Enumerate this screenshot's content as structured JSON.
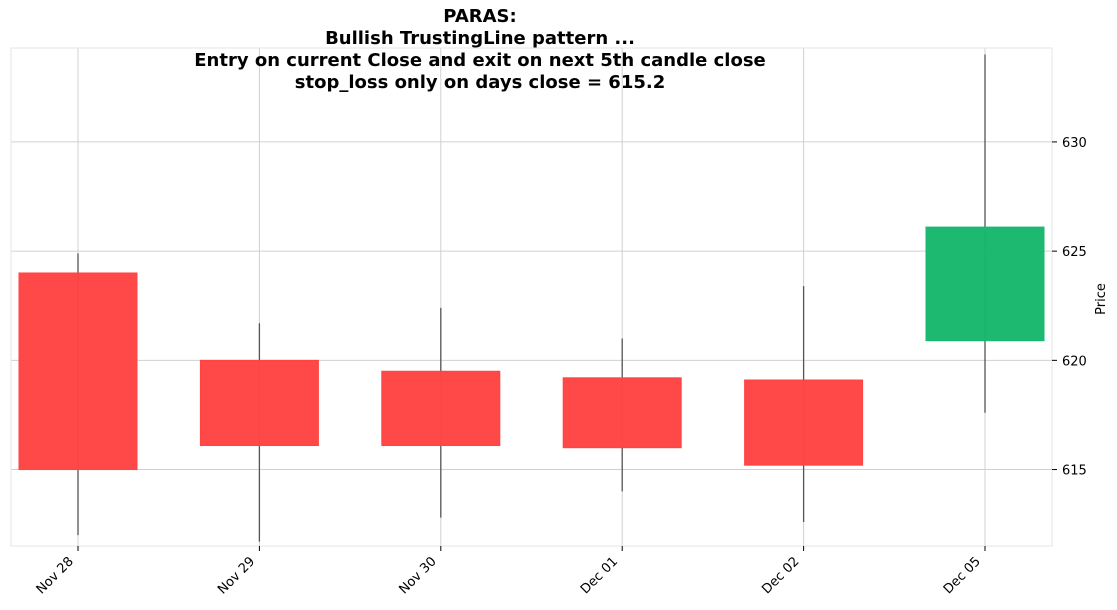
{
  "chart_data": {
    "type": "candlestick",
    "title_lines": [
      "PARAS:",
      "Bullish TrustingLine pattern ...",
      "Entry on current Close and exit on next 5th candle close",
      "stop_loss only on days close = 615.2"
    ],
    "ylabel": "Price",
    "ylim": [
      611.5,
      634.3
    ],
    "yticks": [
      615,
      620,
      625,
      630
    ],
    "categories": [
      "Nov 28",
      "Nov 29",
      "Nov 30",
      "Dec 01",
      "Dec 02",
      "Dec 05"
    ],
    "candles": [
      {
        "date": "Nov 28",
        "open": 624.0,
        "high": 624.9,
        "low": 612.0,
        "close": 615.0
      },
      {
        "date": "Nov 29",
        "open": 620.0,
        "high": 621.7,
        "low": 611.7,
        "close": 616.1
      },
      {
        "date": "Nov 30",
        "open": 619.5,
        "high": 622.4,
        "low": 612.8,
        "close": 616.1
      },
      {
        "date": "Dec 01",
        "open": 619.2,
        "high": 621.0,
        "low": 614.0,
        "close": 616.0
      },
      {
        "date": "Dec 02",
        "open": 619.1,
        "high": 623.4,
        "low": 612.6,
        "close": 615.2
      },
      {
        "date": "Dec 05",
        "open": 620.9,
        "high": 634.0,
        "low": 617.6,
        "close": 626.1
      }
    ],
    "colors": {
      "up": "#18b86e",
      "down": "#ff4444",
      "wick": "#555555",
      "grid": "#d0d0d0"
    },
    "grid": true
  }
}
